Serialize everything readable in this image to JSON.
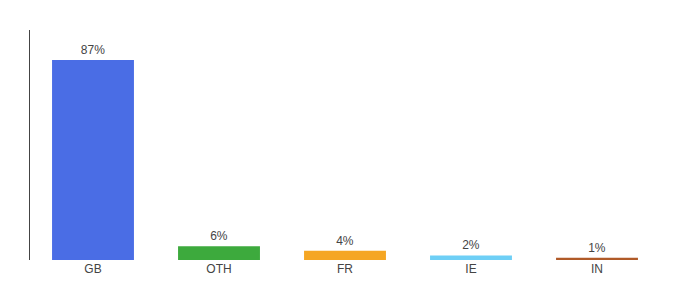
{
  "chart_data": {
    "type": "bar",
    "categories": [
      "GB",
      "OTH",
      "FR",
      "IE",
      "IN"
    ],
    "values": [
      87,
      6,
      4,
      2,
      1
    ],
    "colors": [
      "#4a6de5",
      "#3daa3d",
      "#f5a623",
      "#6ecff6",
      "#b05a28"
    ],
    "data_labels": true,
    "value_labels": [
      "87%",
      "6%",
      "4%",
      "2%",
      "1%"
    ],
    "ylim": [
      0,
      100
    ],
    "tick_labels": "x",
    "grid": false
  }
}
